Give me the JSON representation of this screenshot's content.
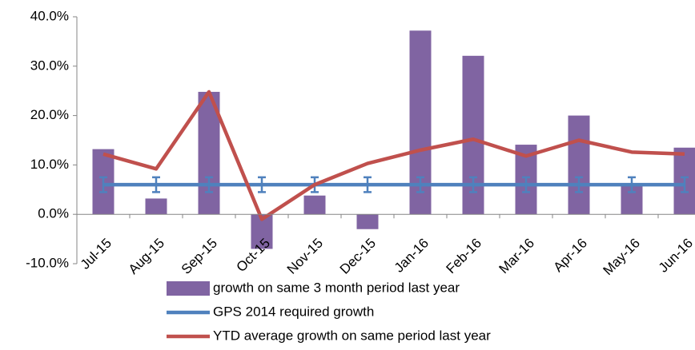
{
  "chart_data": {
    "type": "combo",
    "categories": [
      "Jul-15",
      "Aug-15",
      "Sep-15",
      "Oct-15",
      "Nov-15",
      "Dec-15",
      "Jan-16",
      "Feb-16",
      "Mar-16",
      "Apr-16",
      "May-16",
      "Jun-16"
    ],
    "ylim": [
      -10,
      40
    ],
    "yticks": [
      {
        "value": -10,
        "label": "-10.0%"
      },
      {
        "value": 0,
        "label": "0.0%"
      },
      {
        "value": 10,
        "label": "10.0%"
      },
      {
        "value": 20,
        "label": "20.0%"
      },
      {
        "value": 30,
        "label": "30.0%"
      },
      {
        "value": 40,
        "label": "40.0%"
      }
    ],
    "grid": false,
    "series": [
      {
        "name": "growth on same 3 month period last year",
        "type": "bar",
        "color": "#8064a2",
        "values": [
          13.2,
          3.2,
          24.8,
          -7,
          3.8,
          -3,
          37.2,
          32.1,
          14.1,
          20,
          6,
          13.5
        ]
      },
      {
        "name": "GPS 2014 required growth",
        "type": "line",
        "color": "#4f81bd",
        "values": [
          6,
          6,
          6,
          6,
          6,
          6,
          6,
          6,
          6,
          6,
          6,
          6
        ],
        "errors": [
          1.5,
          1.5,
          1.5,
          1.5,
          1.5,
          1.5,
          1.5,
          1.5,
          1.5,
          1.5,
          1.5,
          1.5
        ]
      },
      {
        "name": "YTD average growth on same period last year",
        "type": "line",
        "color": "#c0504d",
        "values": [
          12.2,
          9.2,
          24.8,
          -1,
          6,
          10.3,
          13,
          15.2,
          11.8,
          15,
          12.6,
          12.2
        ]
      }
    ],
    "legend": "bottom"
  }
}
